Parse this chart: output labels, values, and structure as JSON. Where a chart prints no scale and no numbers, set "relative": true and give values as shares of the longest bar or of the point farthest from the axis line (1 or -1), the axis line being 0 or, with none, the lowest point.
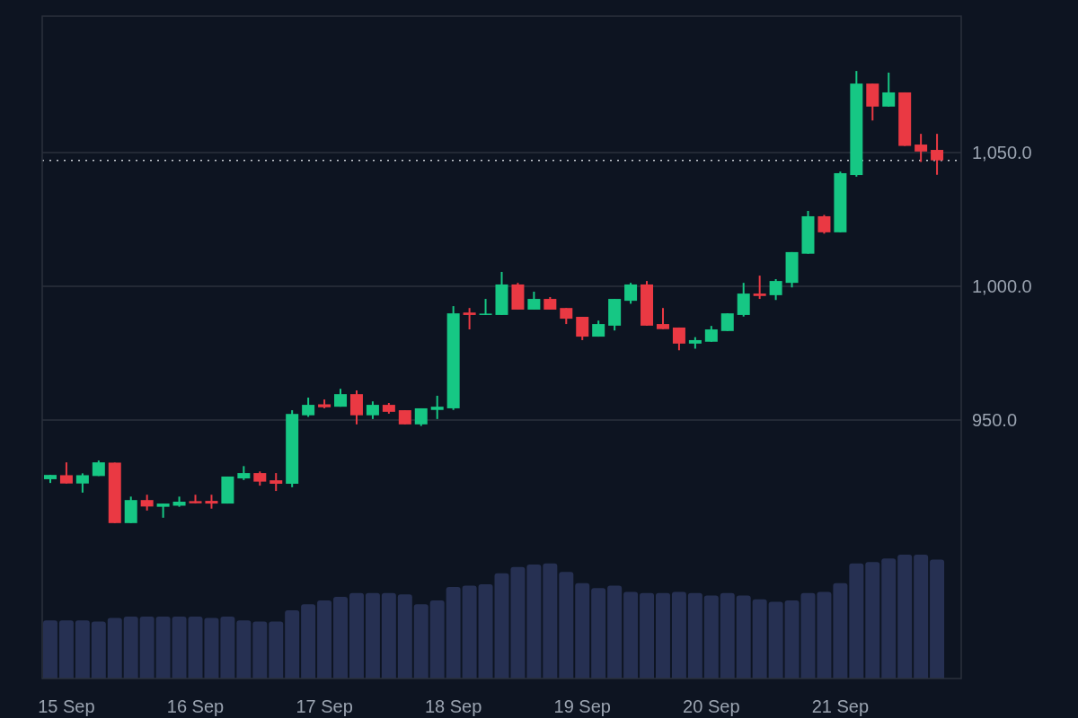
{
  "chart_data": [
    {
      "type": "candlestick",
      "categories": [
        null,
        "15 Sep",
        null,
        null,
        null,
        null,
        null,
        null,
        null,
        "16 Sep",
        null,
        null,
        null,
        null,
        null,
        null,
        null,
        "17 Sep",
        null,
        null,
        null,
        null,
        null,
        null,
        null,
        "18 Sep",
        null,
        null,
        null,
        null,
        null,
        null,
        null,
        "19 Sep",
        null,
        null,
        null,
        null,
        null,
        null,
        null,
        "20 Sep",
        null,
        null,
        null,
        null,
        null,
        null,
        null,
        "21 Sep",
        null,
        null,
        null,
        null,
        null,
        null
      ],
      "ohlc": [
        [
          927.9,
          929.5,
          926.5,
          929.5
        ],
        [
          929.4,
          934.2,
          926.3,
          926.3
        ],
        [
          926.3,
          930.1,
          922.9,
          929.4
        ],
        [
          929.1,
          934.9,
          929.1,
          934.2
        ],
        [
          934.1,
          934.1,
          911.5,
          911.5
        ],
        [
          911.5,
          921.4,
          911.5,
          920.1
        ],
        [
          920.1,
          922.1,
          916.2,
          917.7
        ],
        [
          917.6,
          918.8,
          913.5,
          918.8
        ],
        [
          918.0,
          921.4,
          917.6,
          919.5
        ],
        [
          919.7,
          922.1,
          918.9,
          918.9
        ],
        [
          919.8,
          922.1,
          916.9,
          918.8
        ],
        [
          918.8,
          928.9,
          918.8,
          928.9
        ],
        [
          928.2,
          932.8,
          927.6,
          930.2
        ],
        [
          930.2,
          930.8,
          925.5,
          927.0
        ],
        [
          927.5,
          930.2,
          923.5,
          926.2
        ],
        [
          926.2,
          953.7,
          924.9,
          952.3
        ],
        [
          951.8,
          958.4,
          951.2,
          955.7
        ],
        [
          955.9,
          957.7,
          954.4,
          954.8
        ],
        [
          955.0,
          961.7,
          955.0,
          959.7
        ],
        [
          959.7,
          961.1,
          948.4,
          951.8
        ],
        [
          951.8,
          957.0,
          950.4,
          955.7
        ],
        [
          955.7,
          956.4,
          952.4,
          953.1
        ],
        [
          953.7,
          953.7,
          948.4,
          948.4
        ],
        [
          948.4,
          954.4,
          947.8,
          954.4
        ],
        [
          953.8,
          959.1,
          950.4,
          955.0
        ],
        [
          954.4,
          992.6,
          953.8,
          989.9
        ],
        [
          990.2,
          991.9,
          983.9,
          989.3
        ],
        [
          989.3,
          995.3,
          989.3,
          989.8
        ],
        [
          989.3,
          1005.4,
          989.3,
          1000.7
        ],
        [
          1000.7,
          1001.3,
          991.3,
          991.3
        ],
        [
          991.3,
          998.0,
          991.3,
          995.3
        ],
        [
          995.3,
          996.0,
          991.3,
          991.3
        ],
        [
          991.9,
          991.9,
          985.9,
          987.9
        ],
        [
          988.6,
          988.6,
          979.9,
          981.2
        ],
        [
          981.2,
          987.2,
          981.2,
          985.9
        ],
        [
          985.3,
          995.3,
          983.5,
          995.3
        ],
        [
          994.6,
          1001.3,
          993.5,
          1000.7
        ],
        [
          1000.7,
          1002.0,
          985.3,
          985.3
        ],
        [
          985.9,
          991.9,
          984.0,
          984.0
        ],
        [
          984.6,
          984.6,
          976.1,
          978.6
        ],
        [
          978.6,
          981.0,
          976.7,
          979.9
        ],
        [
          979.3,
          985.2,
          979.3,
          983.9
        ],
        [
          983.3,
          989.9,
          983.3,
          989.9
        ],
        [
          989.3,
          1001.3,
          988.7,
          997.3
        ],
        [
          997.3,
          1004.0,
          995.3,
          996.4
        ],
        [
          996.7,
          1002.7,
          994.9,
          1002.0
        ],
        [
          1001.3,
          1012.8,
          999.6,
          1012.8
        ],
        [
          1012.2,
          1028.2,
          1012.2,
          1026.2
        ],
        [
          1026.2,
          1026.7,
          1019.7,
          1020.2
        ],
        [
          1020.2,
          1042.9,
          1020.2,
          1042.3
        ],
        [
          1041.6,
          1080.5,
          1041.0,
          1075.8
        ],
        [
          1075.8,
          1075.8,
          1062.0,
          1067.2
        ],
        [
          1067.2,
          1079.9,
          1067.2,
          1072.5
        ],
        [
          1072.5,
          1072.5,
          1052.5,
          1052.5
        ],
        [
          1053.0,
          1057.0,
          1046.5,
          1050.4
        ],
        [
          1051.0,
          1057.0,
          1041.7,
          1047.1
        ]
      ],
      "colors": [
        "#16c784",
        "#ea3943",
        "#16c784",
        "#16c784",
        "#ea3943",
        "#16c784",
        "#ea3943",
        "#16c784",
        "#16c784",
        "#ea3943",
        "#ea3943",
        "#16c784",
        "#16c784",
        "#ea3943",
        "#ea3943",
        "#16c784",
        "#16c784",
        "#ea3943",
        "#16c784",
        "#ea3943",
        "#16c784",
        "#ea3943",
        "#ea3943",
        "#16c784",
        "#16c784",
        "#16c784",
        "#ea3943",
        "#16c784",
        "#16c784",
        "#ea3943",
        "#16c784",
        "#ea3943",
        "#ea3943",
        "#ea3943",
        "#16c784",
        "#16c784",
        "#16c784",
        "#ea3943",
        "#ea3943",
        "#ea3943",
        "#16c784",
        "#16c784",
        "#16c784",
        "#16c784",
        "#ea3943",
        "#16c784",
        "#16c784",
        "#16c784",
        "#ea3943",
        "#16c784",
        "#16c784",
        "#ea3943",
        "#16c784",
        "#ea3943",
        "#ea3943",
        "#ea3943"
      ],
      "ylim": [
        853.4,
        1101
      ],
      "yticks": [
        {
          "value": 950,
          "label": "950.0"
        },
        {
          "value": 1000,
          "label": "1,000.0"
        },
        {
          "value": 1050,
          "label": "1,050.0"
        }
      ],
      "grid": "y",
      "ref_lines": [
        {
          "axis": "y",
          "value": 1047.1,
          "color": "#c8ccd4",
          "line_style": "dotted"
        }
      ]
    },
    {
      "type": "bar",
      "relative": true,
      "color": "#263052",
      "categories": [
        null,
        null,
        null,
        null,
        null,
        null,
        null,
        null,
        null,
        null,
        null,
        null,
        null,
        null,
        null,
        null,
        null,
        null,
        null,
        null,
        null,
        null,
        null,
        null,
        null,
        null,
        null,
        null,
        null,
        null,
        null,
        null,
        null,
        null,
        null,
        null,
        null,
        null,
        null,
        null,
        null,
        null,
        null,
        null,
        null,
        null,
        null,
        null,
        null,
        null,
        null,
        null,
        null,
        null,
        null,
        null
      ],
      "values": [
        0.47,
        0.47,
        0.47,
        0.46,
        0.49,
        0.5,
        0.5,
        0.5,
        0.5,
        0.5,
        0.49,
        0.5,
        0.47,
        0.46,
        0.46,
        0.55,
        0.6,
        0.63,
        0.66,
        0.69,
        0.69,
        0.69,
        0.68,
        0.6,
        0.63,
        0.74,
        0.75,
        0.76,
        0.85,
        0.9,
        0.92,
        0.93,
        0.86,
        0.77,
        0.73,
        0.75,
        0.7,
        0.69,
        0.69,
        0.7,
        0.69,
        0.67,
        0.69,
        0.67,
        0.64,
        0.62,
        0.63,
        0.69,
        0.7,
        0.77,
        0.93,
        0.94,
        0.97,
        1,
        1,
        0.96
      ]
    }
  ]
}
